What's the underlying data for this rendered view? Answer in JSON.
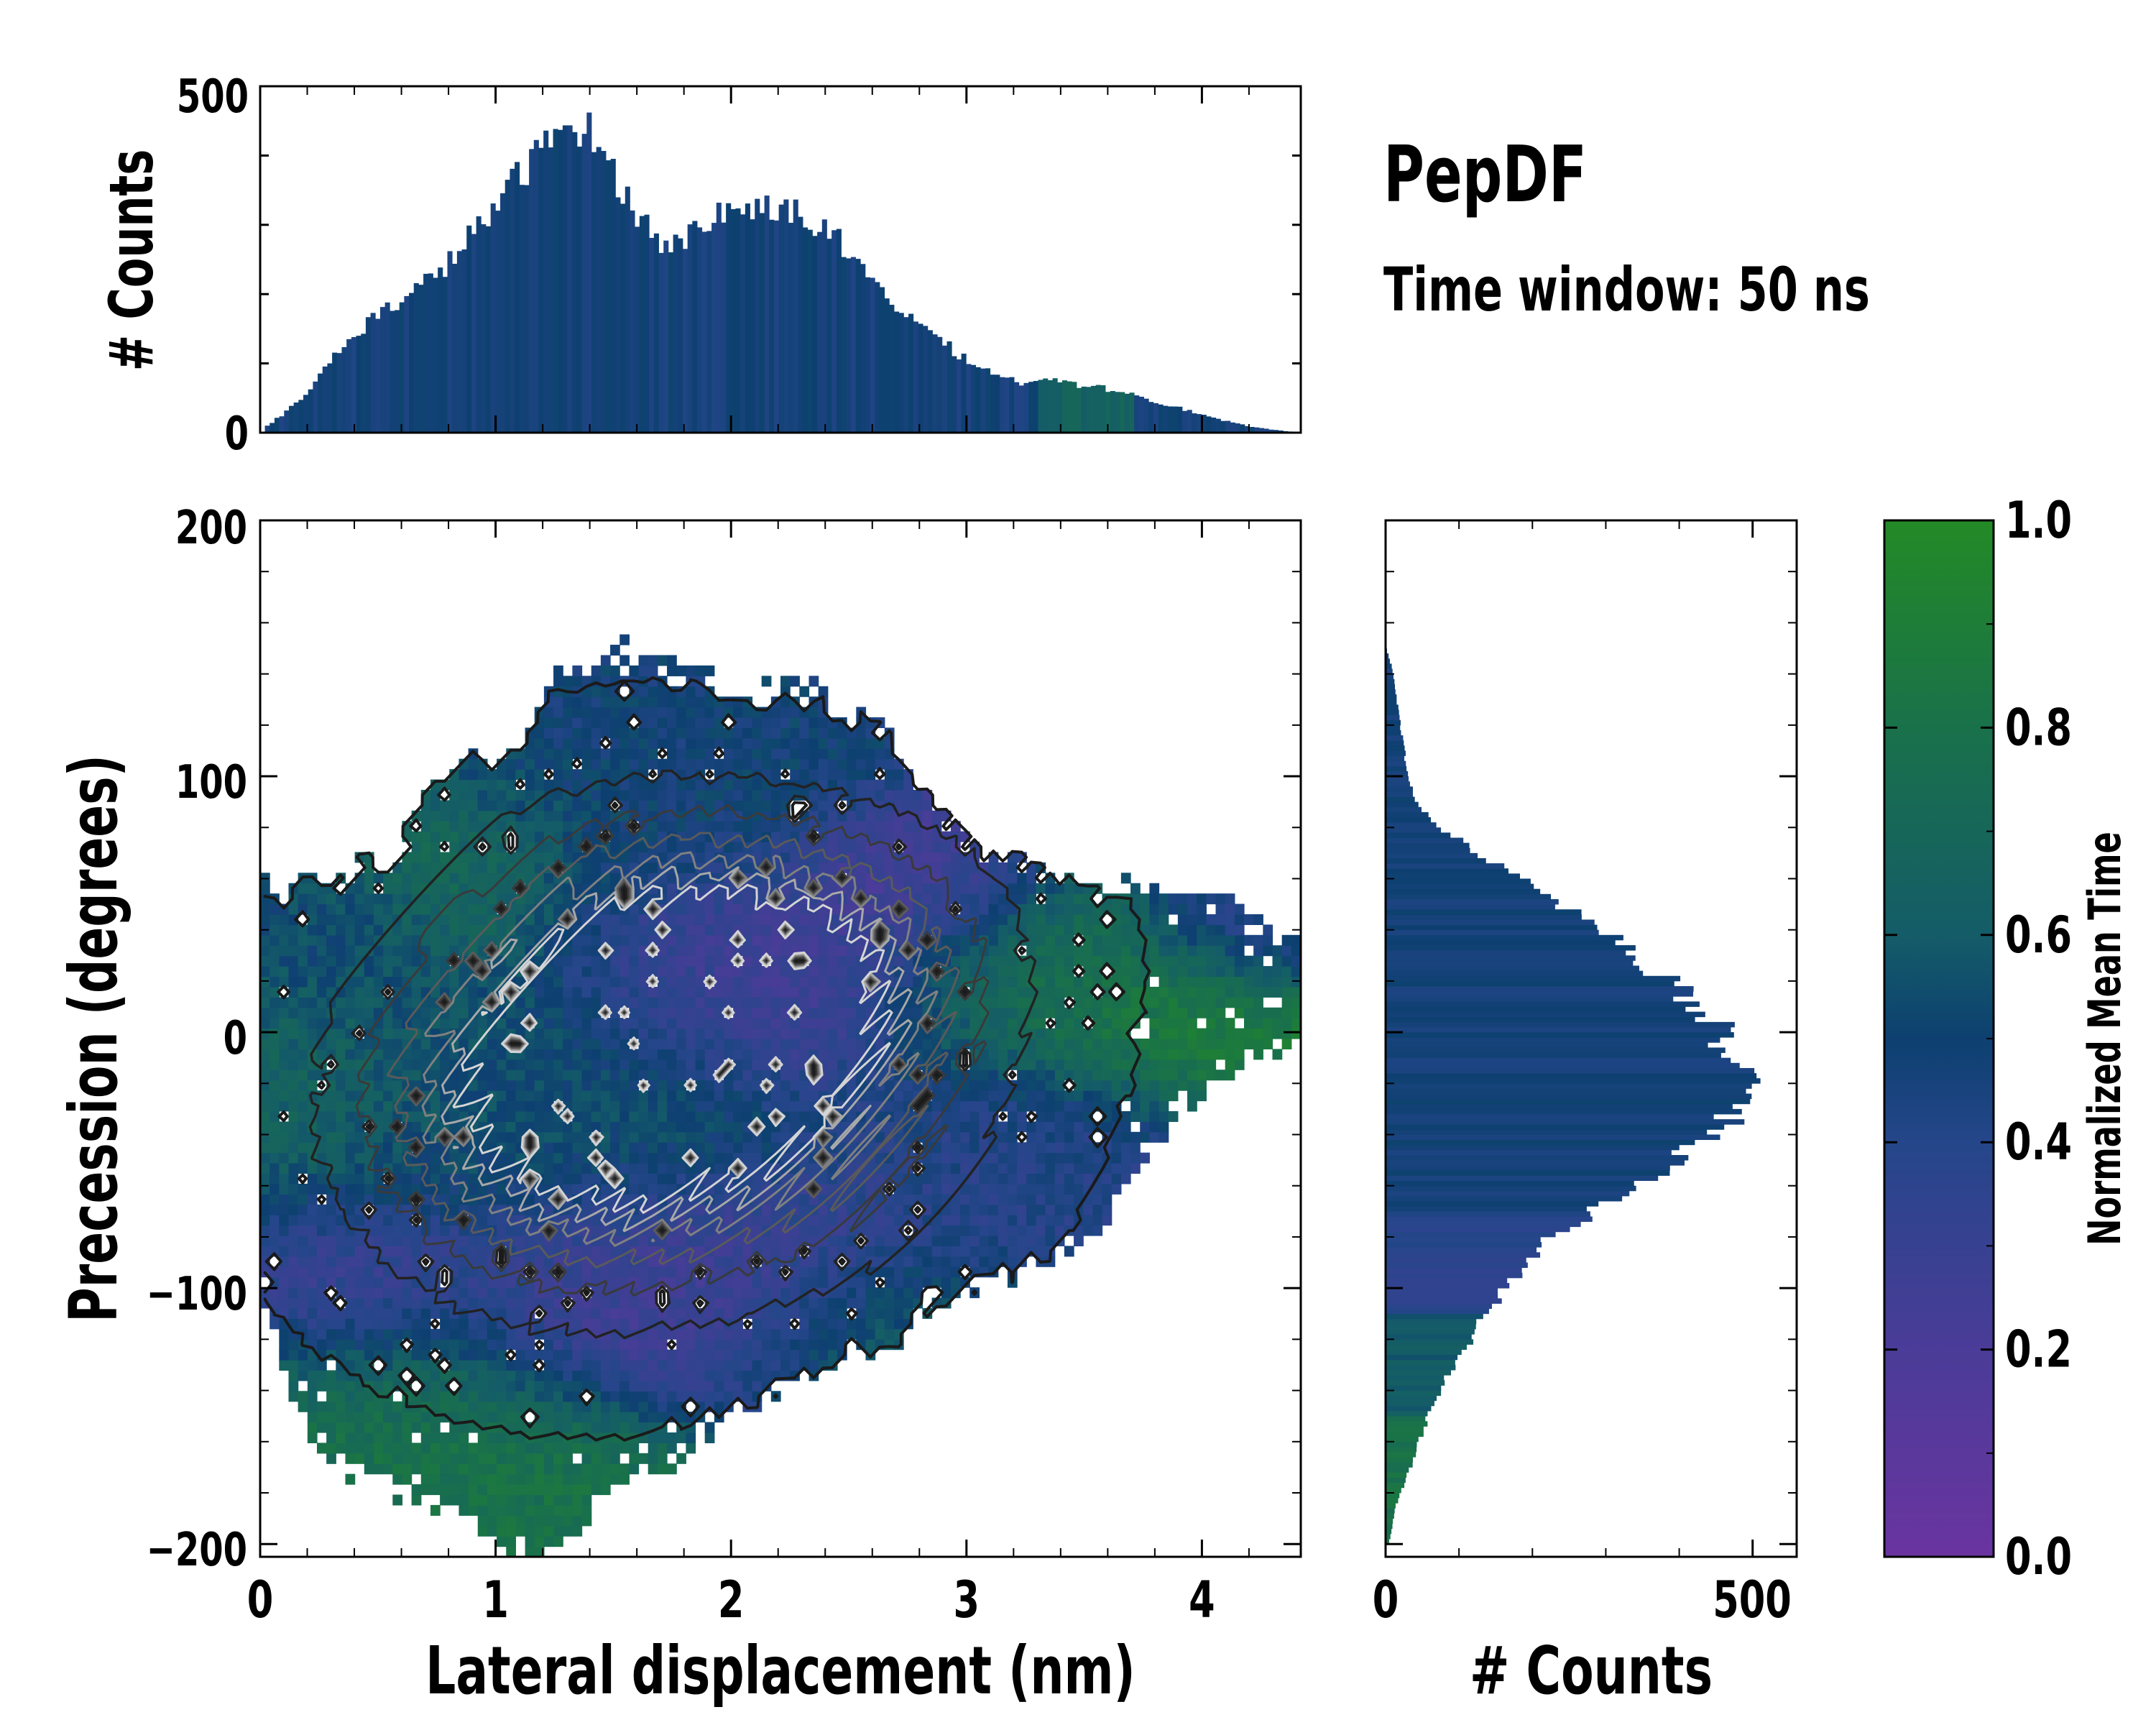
{
  "figure": {
    "title": "PepDF",
    "subtitle": "Time window: 50 ns"
  },
  "chart_data": [
    {
      "type": "bar",
      "name": "top-histogram",
      "description_role": "marginal histogram of lateral displacement",
      "xlabel": "",
      "ylabel": "# Counts",
      "xlim": [
        0,
        4.42
      ],
      "ylim": [
        0,
        500
      ],
      "yticks": [
        "0",
        "500"
      ],
      "bins_x_start": 0.02,
      "bin_width": 0.0204,
      "envelope_x": [
        0.0,
        0.1,
        0.2,
        0.3,
        0.45,
        0.6,
        0.75,
        0.85,
        0.95,
        1.05,
        1.15,
        1.25,
        1.32,
        1.4,
        1.5,
        1.6,
        1.7,
        1.75,
        1.85,
        1.95,
        2.05,
        2.15,
        2.25,
        2.35,
        2.45,
        2.55,
        2.65,
        2.75,
        2.85,
        2.95,
        3.05,
        3.15,
        3.25,
        3.35,
        3.45,
        3.55,
        3.65,
        3.75,
        3.85,
        3.95,
        4.05,
        4.15,
        4.25,
        4.35,
        4.42
      ],
      "envelope_counts": [
        5,
        30,
        60,
        110,
        160,
        195,
        230,
        270,
        310,
        355,
        395,
        430,
        450,
        430,
        370,
        310,
        275,
        270,
        295,
        320,
        320,
        330,
        320,
        300,
        275,
        230,
        195,
        170,
        140,
        115,
        95,
        80,
        70,
        75,
        70,
        65,
        60,
        50,
        40,
        30,
        20,
        12,
        6,
        2,
        0
      ],
      "color_note": "bars coloured by normalized mean time"
    },
    {
      "type": "heatmap",
      "name": "main-2d-histogram",
      "xlabel": "Lateral displacement (nm)",
      "ylabel": "Precession (degrees)",
      "xlim": [
        0,
        4.42
      ],
      "ylim": [
        -205,
        200
      ],
      "xticks": [
        "0",
        "1",
        "2",
        "3",
        "4"
      ],
      "yticks": [
        "−200",
        "−100",
        "0",
        "100",
        "200"
      ],
      "support_upper": [
        [
          0.0,
          55
        ],
        [
          0.3,
          60
        ],
        [
          0.6,
          70
        ],
        [
          0.7,
          95
        ],
        [
          0.9,
          105
        ],
        [
          1.1,
          115
        ],
        [
          1.25,
          140
        ],
        [
          1.5,
          148
        ],
        [
          1.8,
          140
        ],
        [
          2.1,
          130
        ],
        [
          2.3,
          135
        ],
        [
          2.5,
          125
        ],
        [
          2.7,
          115
        ],
        [
          2.8,
          95
        ],
        [
          2.95,
          80
        ],
        [
          3.2,
          65
        ],
        [
          3.5,
          60
        ],
        [
          3.8,
          55
        ],
        [
          4.1,
          50
        ],
        [
          4.4,
          40
        ]
      ],
      "support_lower": [
        [
          0.0,
          -95
        ],
        [
          0.1,
          -130
        ],
        [
          0.2,
          -155
        ],
        [
          0.35,
          -170
        ],
        [
          0.55,
          -175
        ],
        [
          0.75,
          -185
        ],
        [
          0.95,
          -195
        ],
        [
          1.15,
          -205
        ],
        [
          1.3,
          -200
        ],
        [
          1.5,
          -180
        ],
        [
          1.75,
          -170
        ],
        [
          1.95,
          -150
        ],
        [
          2.2,
          -140
        ],
        [
          2.5,
          -130
        ],
        [
          2.7,
          -120
        ],
        [
          2.95,
          -105
        ],
        [
          3.3,
          -90
        ],
        [
          3.6,
          -75
        ],
        [
          3.9,
          -30
        ],
        [
          4.2,
          -10
        ],
        [
          4.4,
          0
        ]
      ],
      "color_regions": [
        {
          "x": 1.4,
          "y": 120,
          "value": 0.48,
          "spread": [
            0.5,
            25
          ]
        },
        {
          "x": 0.8,
          "y": 60,
          "value": 0.72,
          "spread": [
            0.35,
            25
          ]
        },
        {
          "x": 0.3,
          "y": 35,
          "value": 0.45,
          "spread": [
            0.25,
            20
          ]
        },
        {
          "x": 0.2,
          "y": -20,
          "value": 0.68,
          "spread": [
            0.25,
            40
          ]
        },
        {
          "x": 0.35,
          "y": -95,
          "value": 0.18,
          "spread": [
            0.3,
            22
          ]
        },
        {
          "x": 0.6,
          "y": -150,
          "value": 0.78,
          "spread": [
            0.45,
            30
          ]
        },
        {
          "x": 1.2,
          "y": -180,
          "value": 0.8,
          "spread": [
            0.45,
            25
          ]
        },
        {
          "x": 1.4,
          "y": -105,
          "value": 0.2,
          "spread": [
            0.45,
            25
          ]
        },
        {
          "x": 2.2,
          "y": -110,
          "value": 0.28,
          "spread": [
            0.4,
            25
          ]
        },
        {
          "x": 2.6,
          "y": -125,
          "value": 0.72,
          "spread": [
            0.35,
            20
          ]
        },
        {
          "x": 2.1,
          "y": 30,
          "value": 0.25,
          "spread": [
            0.5,
            25
          ]
        },
        {
          "x": 2.8,
          "y": 60,
          "value": 0.22,
          "spread": [
            0.3,
            15
          ]
        },
        {
          "x": 3.4,
          "y": 20,
          "value": 0.75,
          "spread": [
            0.4,
            25
          ]
        },
        {
          "x": 3.9,
          "y": 10,
          "value": 0.92,
          "spread": [
            0.3,
            20
          ]
        },
        {
          "x": 4.1,
          "y": 40,
          "value": 0.3,
          "spread": [
            0.25,
            15
          ]
        },
        {
          "x": 3.3,
          "y": -50,
          "value": 0.4,
          "spread": [
            0.4,
            25
          ]
        },
        {
          "x": 1.8,
          "y": 80,
          "value": 0.5,
          "spread": [
            0.4,
            20
          ]
        },
        {
          "x": 1.0,
          "y": -30,
          "value": 0.55,
          "spread": [
            0.6,
            40
          ]
        }
      ],
      "density_peaks": [
        {
          "x": 1.25,
          "y": -30,
          "peak": 1.0,
          "spread": [
            0.55,
            45
          ]
        },
        {
          "x": 2.1,
          "y": -20,
          "peak": 0.85,
          "spread": [
            0.55,
            45
          ]
        },
        {
          "x": 2.4,
          "y": 30,
          "peak": 0.6,
          "spread": [
            0.5,
            35
          ]
        },
        {
          "x": 1.6,
          "y": 30,
          "peak": 0.6,
          "spread": [
            0.5,
            40
          ]
        }
      ]
    },
    {
      "type": "bar",
      "name": "right-histogram",
      "description_role": "marginal histogram of precession (horizontal bars)",
      "xlabel": "# Counts",
      "ylabel": "",
      "xlim": [
        0,
        560
      ],
      "xticks": [
        "0",
        "500"
      ],
      "ylim": [
        -205,
        200
      ],
      "bin_height_deg": 2.0,
      "envelope_y": [
        -200,
        -185,
        -170,
        -150,
        -130,
        -110,
        -95,
        -80,
        -65,
        -50,
        -40,
        -30,
        -20,
        -10,
        0,
        10,
        20,
        30,
        40,
        50,
        60,
        70,
        80,
        90,
        100,
        110,
        120,
        130,
        140,
        150
      ],
      "envelope_counts": [
        5,
        15,
        35,
        60,
        95,
        140,
        180,
        230,
        320,
        400,
        455,
        480,
        490,
        470,
        460,
        420,
        380,
        340,
        290,
        230,
        180,
        120,
        70,
        40,
        30,
        25,
        20,
        15,
        10,
        0
      ],
      "color_note": "bars coloured by normalized mean time"
    },
    {
      "type": "heatmap",
      "name": "colorbar",
      "label": "Normalized Mean Time",
      "range": [
        0.0,
        1.0
      ],
      "ticks": [
        "0.0",
        "0.2",
        "0.4",
        "0.6",
        "0.8",
        "1.0"
      ],
      "tick_values": [
        0.0,
        0.2,
        0.4,
        0.6,
        0.8,
        1.0
      ],
      "colormap_stops": [
        {
          "v": 0.0,
          "color": "#6a34a0"
        },
        {
          "v": 0.2,
          "color": "#4a3c98"
        },
        {
          "v": 0.4,
          "color": "#25468a"
        },
        {
          "v": 0.5,
          "color": "#0d4070"
        },
        {
          "v": 0.6,
          "color": "#145c68"
        },
        {
          "v": 0.8,
          "color": "#19714a"
        },
        {
          "v": 1.0,
          "color": "#238a26"
        }
      ]
    }
  ]
}
